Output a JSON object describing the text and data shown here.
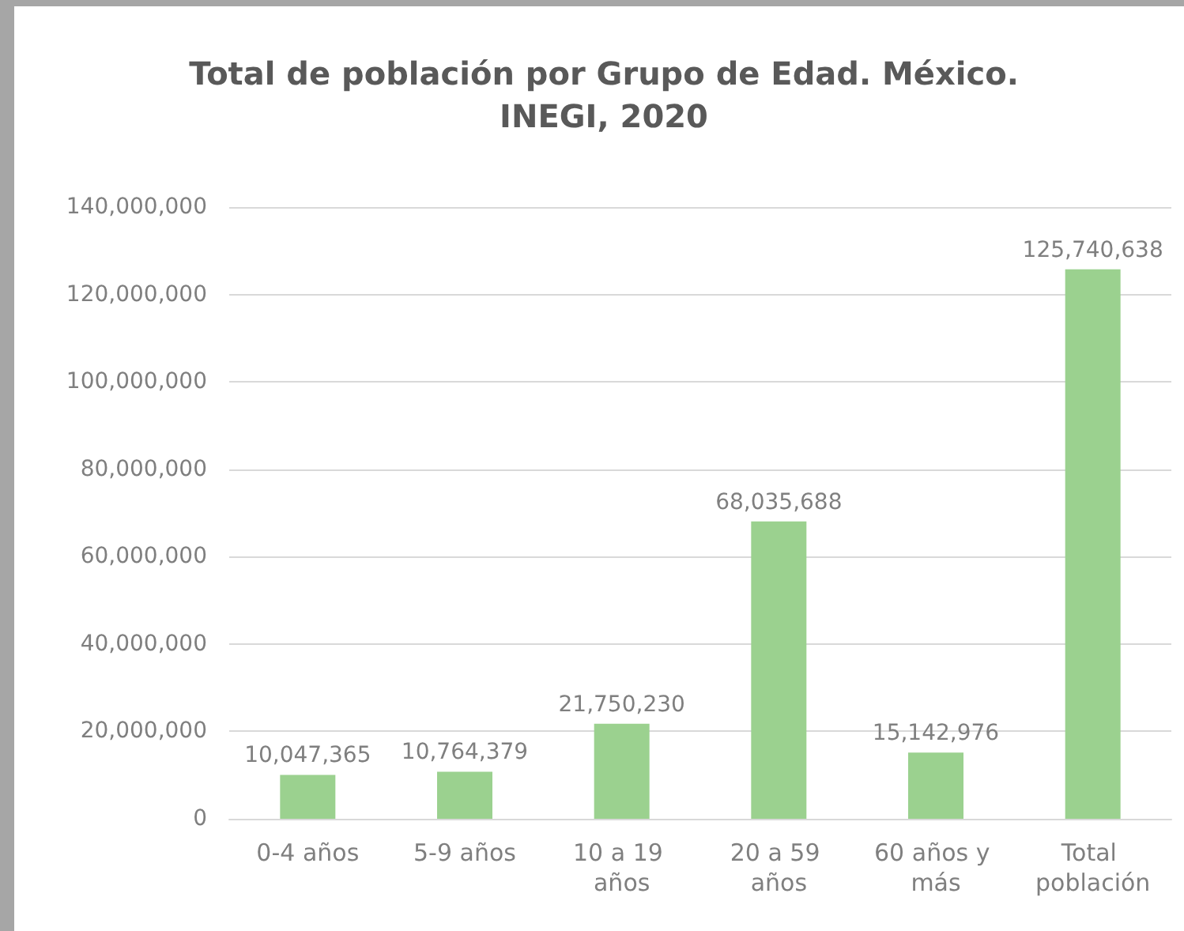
{
  "chart_data": {
    "type": "bar",
    "title": "Total de población por Grupo de Edad. México.\nINEGI, 2020",
    "categories": [
      "0-4 años",
      "5-9 años",
      "10 a 19 años",
      "20 a 59 años",
      "60 años y más",
      "Total población"
    ],
    "values": [
      10047365,
      10764379,
      21750230,
      68035688,
      15142976,
      125740638
    ],
    "value_labels": [
      "10,047,365",
      "10,764,379",
      "21,750,230",
      "68,035,688",
      "15,142,976",
      "125,740,638"
    ],
    "color": "#9bd18f",
    "ylim": [
      0,
      140000000
    ],
    "yticks": [
      0,
      {
        "value": 20000000,
        "label": "20,000,000"
      },
      {
        "value": 40000000,
        "label": "40,000,000"
      },
      {
        "value": 60000000,
        "label": "60,000,000"
      },
      {
        "value": 80000000,
        "label": "80,000,000"
      },
      {
        "value": 100000000,
        "label": "100,000,000"
      },
      {
        "value": 120000000,
        "label": "120,000,000"
      },
      {
        "value": 140000000,
        "label": "140,000,000"
      }
    ],
    "grid": "y"
  }
}
